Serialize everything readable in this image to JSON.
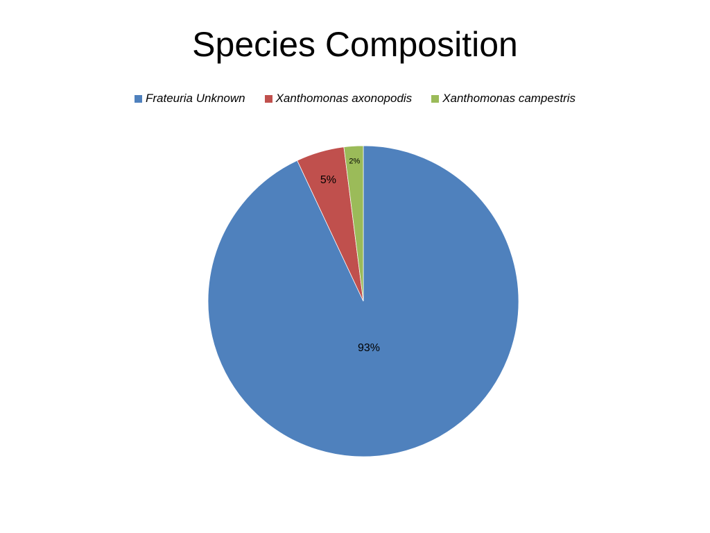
{
  "chart_data": {
    "type": "pie",
    "title": "Species Composition",
    "categories": [
      "Frateuria Unknown",
      "Xanthomonas axonopodis",
      "Xanthomonas campestris"
    ],
    "values": [
      93,
      5,
      2
    ],
    "data_labels": [
      "93%",
      "5%",
      "2%"
    ],
    "colors": [
      "#4F81BD",
      "#C0504D",
      "#9BBB59"
    ],
    "legend_position": "top",
    "start_angle": "top, clockwise"
  }
}
